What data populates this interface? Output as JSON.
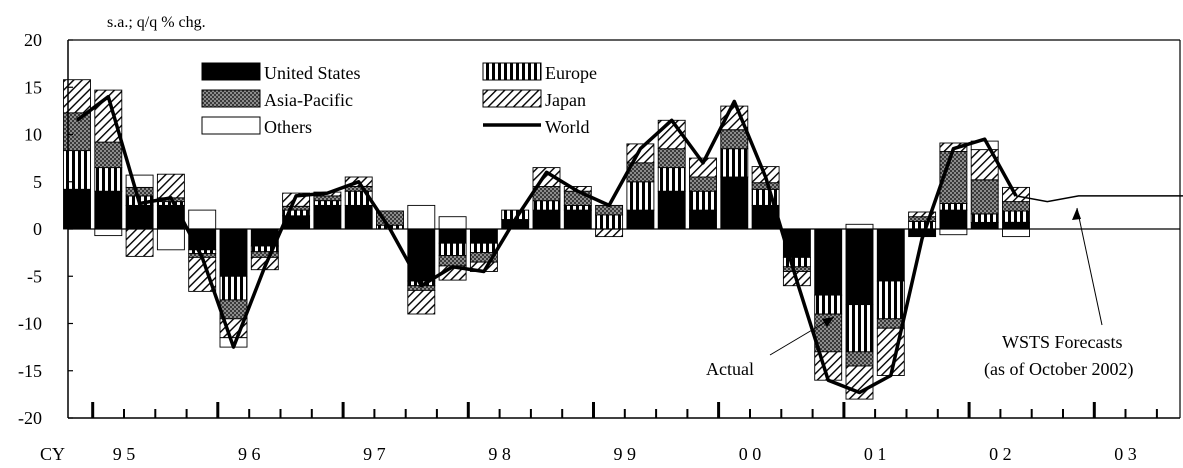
{
  "chart_data": {
    "type": "bar",
    "subtype": "stacked bar with line",
    "unit_label": "s.a.; q/q % chg.",
    "ylim": [
      -20,
      20
    ],
    "yticks": [
      20,
      15,
      10,
      5,
      0,
      -5,
      -10,
      -15,
      -20
    ],
    "xlabel_prefix": "CY",
    "years": [
      "9 5",
      "9 6",
      "9 7",
      "9 8",
      "9 9",
      "0 0",
      "0 1",
      "0 2",
      "0 3"
    ],
    "grid": false,
    "legend": [
      {
        "key": "us",
        "label": "United States"
      },
      {
        "key": "eu",
        "label": "Europe"
      },
      {
        "key": "ap",
        "label": "Asia-Pacific"
      },
      {
        "key": "jp",
        "label": "Japan"
      },
      {
        "key": "ot",
        "label": "Others"
      },
      {
        "key": "world",
        "label": "World"
      }
    ],
    "series_order": [
      "us",
      "eu",
      "ap",
      "jp",
      "ot"
    ],
    "quarters": [
      {
        "us": 4.2,
        "eu": 4.1,
        "ap": 4.0,
        "jp": 3.5,
        "ot": 0.0
      },
      {
        "us": 4.0,
        "eu": 2.5,
        "ap": 2.7,
        "jp": 5.5,
        "ot": -0.7
      },
      {
        "us": 2.5,
        "eu": 1.0,
        "ap": 0.9,
        "jp": -2.9,
        "ot": 1.3
      },
      {
        "us": 2.5,
        "eu": 0.4,
        "ap": 0.4,
        "jp": 2.5,
        "ot": -2.2
      },
      {
        "us": -2.2,
        "eu": -0.4,
        "ap": -0.4,
        "jp": -3.6,
        "ot": 2.0
      },
      {
        "us": -5.0,
        "eu": -2.5,
        "ap": -2.0,
        "jp": -2.0,
        "ot": -1.0
      },
      {
        "us": -1.8,
        "eu": -0.6,
        "ap": -0.6,
        "jp": -1.3,
        "ot": 0.0
      },
      {
        "us": 1.4,
        "eu": 0.6,
        "ap": 0.4,
        "jp": 1.4,
        "ot": 0.0
      },
      {
        "us": 2.5,
        "eu": 0.5,
        "ap": 0.5,
        "jp": 0.4,
        "ot": 0.0
      },
      {
        "us": 2.5,
        "eu": 1.5,
        "ap": 0.5,
        "jp": 1.0,
        "ot": 0.0
      },
      {
        "us": 0.0,
        "eu": 0.4,
        "ap": 1.5,
        "jp": 0.0,
        "ot": 0.0
      },
      {
        "us": -5.5,
        "eu": -0.5,
        "ap": -0.5,
        "jp": -2.5,
        "ot": 2.5
      },
      {
        "us": -1.5,
        "eu": -1.3,
        "ap": -1.1,
        "jp": -1.5,
        "ot": 1.3
      },
      {
        "us": -1.5,
        "eu": -1.0,
        "ap": -1.0,
        "jp": -1.0,
        "ot": 0.0
      },
      {
        "us": 1.0,
        "eu": 1.0,
        "ap": 0.0,
        "jp": 0.0,
        "ot": 0.0
      },
      {
        "us": 2.0,
        "eu": 1.0,
        "ap": 1.5,
        "jp": 2.0,
        "ot": 0.0
      },
      {
        "us": 2.0,
        "eu": 0.5,
        "ap": 1.5,
        "jp": 0.5,
        "ot": 0.0
      },
      {
        "us": 0.0,
        "eu": 1.5,
        "ap": 1.0,
        "jp": -0.8,
        "ot": 0.0
      },
      {
        "us": 2.0,
        "eu": 3.0,
        "ap": 2.0,
        "jp": 2.0,
        "ot": 0.0
      },
      {
        "us": 4.0,
        "eu": 2.5,
        "ap": 2.0,
        "jp": 3.0,
        "ot": 0.0
      },
      {
        "us": 2.0,
        "eu": 2.0,
        "ap": 1.5,
        "jp": 2.0,
        "ot": 0.0
      },
      {
        "us": 5.5,
        "eu": 3.0,
        "ap": 2.0,
        "jp": 2.5,
        "ot": 0.0
      },
      {
        "us": 2.5,
        "eu": 1.7,
        "ap": 0.7,
        "jp": 1.7,
        "ot": 0.0
      },
      {
        "us": -3.0,
        "eu": -1.0,
        "ap": -0.5,
        "jp": -1.5,
        "ot": 0.0
      },
      {
        "us": -7.0,
        "eu": -2.0,
        "ap": -4.0,
        "jp": -3.0,
        "ot": 0.0
      },
      {
        "us": -8.0,
        "eu": -5.0,
        "ap": -1.5,
        "jp": -3.5,
        "ot": 0.5
      },
      {
        "us": -5.5,
        "eu": -4.0,
        "ap": -1.0,
        "jp": -5.0,
        "ot": 0.0
      },
      {
        "us": -0.8,
        "eu": 0.8,
        "ap": 0.5,
        "jp": 0.5,
        "ot": 0.0
      },
      {
        "us": 2.0,
        "eu": 0.7,
        "ap": 5.5,
        "jp": 0.9,
        "ot": -0.6
      },
      {
        "us": 0.7,
        "eu": 0.9,
        "ap": 3.6,
        "jp": 3.2,
        "ot": 0.9
      },
      {
        "us": 0.7,
        "eu": 1.2,
        "ap": 1.0,
        "jp": 1.5,
        "ot": -0.8
      }
    ],
    "world": [
      11.5,
      14.0,
      2.7,
      3.3,
      -3.0,
      -12.5,
      -4.0,
      3.5,
      3.8,
      5.0,
      0.0,
      -6.0,
      -4.0,
      -4.5,
      1.0,
      6.0,
      4.0,
      2.5,
      8.5,
      11.5,
      7.0,
      13.5,
      5.5,
      -5.5,
      -16.0,
      -17.3,
      -15.5,
      -1.0,
      8.5,
      9.5,
      3.5
    ],
    "forecast": [
      3.5,
      2.9,
      3.5,
      3.5,
      3.5,
      3.5,
      3.5,
      3.5,
      3.5,
      3.5,
      3.5,
      3.5,
      3.5,
      3.5,
      3.5,
      3.5,
      3.5,
      3.5,
      3.5,
      3.5,
      3.5,
      3.5
    ],
    "annotations": [
      {
        "text": "Actual"
      },
      {
        "text_lines": [
          "WSTS Forecasts",
          "(as of October 2002)"
        ]
      }
    ]
  }
}
